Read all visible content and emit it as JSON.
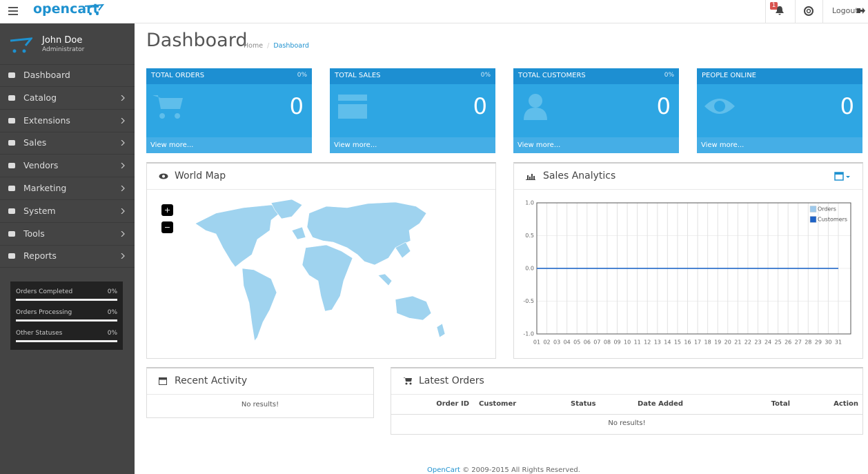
{
  "header": {
    "logo": "opencart",
    "notification_count": "1",
    "logout": "Logout"
  },
  "sidebar": {
    "user_name": "John Doe",
    "user_role": "Administrator",
    "menu": [
      "Dashboard",
      "Catalog",
      "Extensions",
      "Sales",
      "Vendors",
      "Marketing",
      "System",
      "Tools",
      "Reports"
    ],
    "stats": [
      {
        "label": "Orders Completed",
        "value": "0%"
      },
      {
        "label": "Orders Processing",
        "value": "0%"
      },
      {
        "label": "Other Statuses",
        "value": "0%"
      }
    ]
  },
  "page": {
    "title": "Dashboard",
    "breadcrumb": [
      "Home",
      "Dashboard"
    ],
    "breadcrumb_separator": "/"
  },
  "tiles": [
    {
      "title": "TOTAL ORDERS",
      "change": "0%",
      "value": "0",
      "link": "View more..."
    },
    {
      "title": "TOTAL SALES",
      "change": "0%",
      "value": "0",
      "link": "View more..."
    },
    {
      "title": "TOTAL CUSTOMERS",
      "change": "0%",
      "value": "0",
      "link": "View more..."
    },
    {
      "title": "PEOPLE ONLINE",
      "value": "0",
      "link": "View more..."
    }
  ],
  "world_map": {
    "title": "World Map",
    "zoom_in": "+",
    "zoom_out": "−"
  },
  "chart_data": {
    "type": "line",
    "title": "Sales Analytics",
    "categories": [
      "01",
      "02",
      "03",
      "04",
      "05",
      "06",
      "07",
      "08",
      "09",
      "10",
      "11",
      "12",
      "13",
      "14",
      "15",
      "16",
      "17",
      "18",
      "19",
      "20",
      "21",
      "22",
      "23",
      "24",
      "25",
      "26",
      "27",
      "28",
      "29",
      "30",
      "31"
    ],
    "series": [
      {
        "name": "Orders",
        "color": "#9dc9ec",
        "values": [
          0,
          0,
          0,
          0,
          0,
          0,
          0,
          0,
          0,
          0,
          0,
          0,
          0,
          0,
          0,
          0,
          0,
          0,
          0,
          0,
          0,
          0,
          0,
          0,
          0,
          0,
          0,
          0,
          0,
          0,
          0
        ]
      },
      {
        "name": "Customers",
        "color": "#1f63c6",
        "values": [
          0,
          0,
          0,
          0,
          0,
          0,
          0,
          0,
          0,
          0,
          0,
          0,
          0,
          0,
          0,
          0,
          0,
          0,
          0,
          0,
          0,
          0,
          0,
          0,
          0,
          0,
          0,
          0,
          0,
          0,
          0
        ]
      }
    ],
    "ylim": [
      -1,
      1
    ],
    "yticks": [
      {
        "value": -1,
        "label": "-1.0"
      },
      -0.5,
      {
        "value": 0,
        "label": "0.0"
      },
      0.5,
      {
        "value": 1,
        "label": "1.0"
      }
    ],
    "grid": true,
    "legend": "top-right"
  },
  "recent_activity": {
    "title": "Recent Activity",
    "empty": "No results!"
  },
  "latest_orders": {
    "title": "Latest Orders",
    "columns": [
      "Order ID",
      "Customer",
      "Status",
      "Date Added",
      "Total",
      "Action"
    ],
    "empty": "No results!"
  },
  "footer": {
    "link": "OpenCart",
    "text": "© 2009-2015 All Rights Reserved."
  }
}
